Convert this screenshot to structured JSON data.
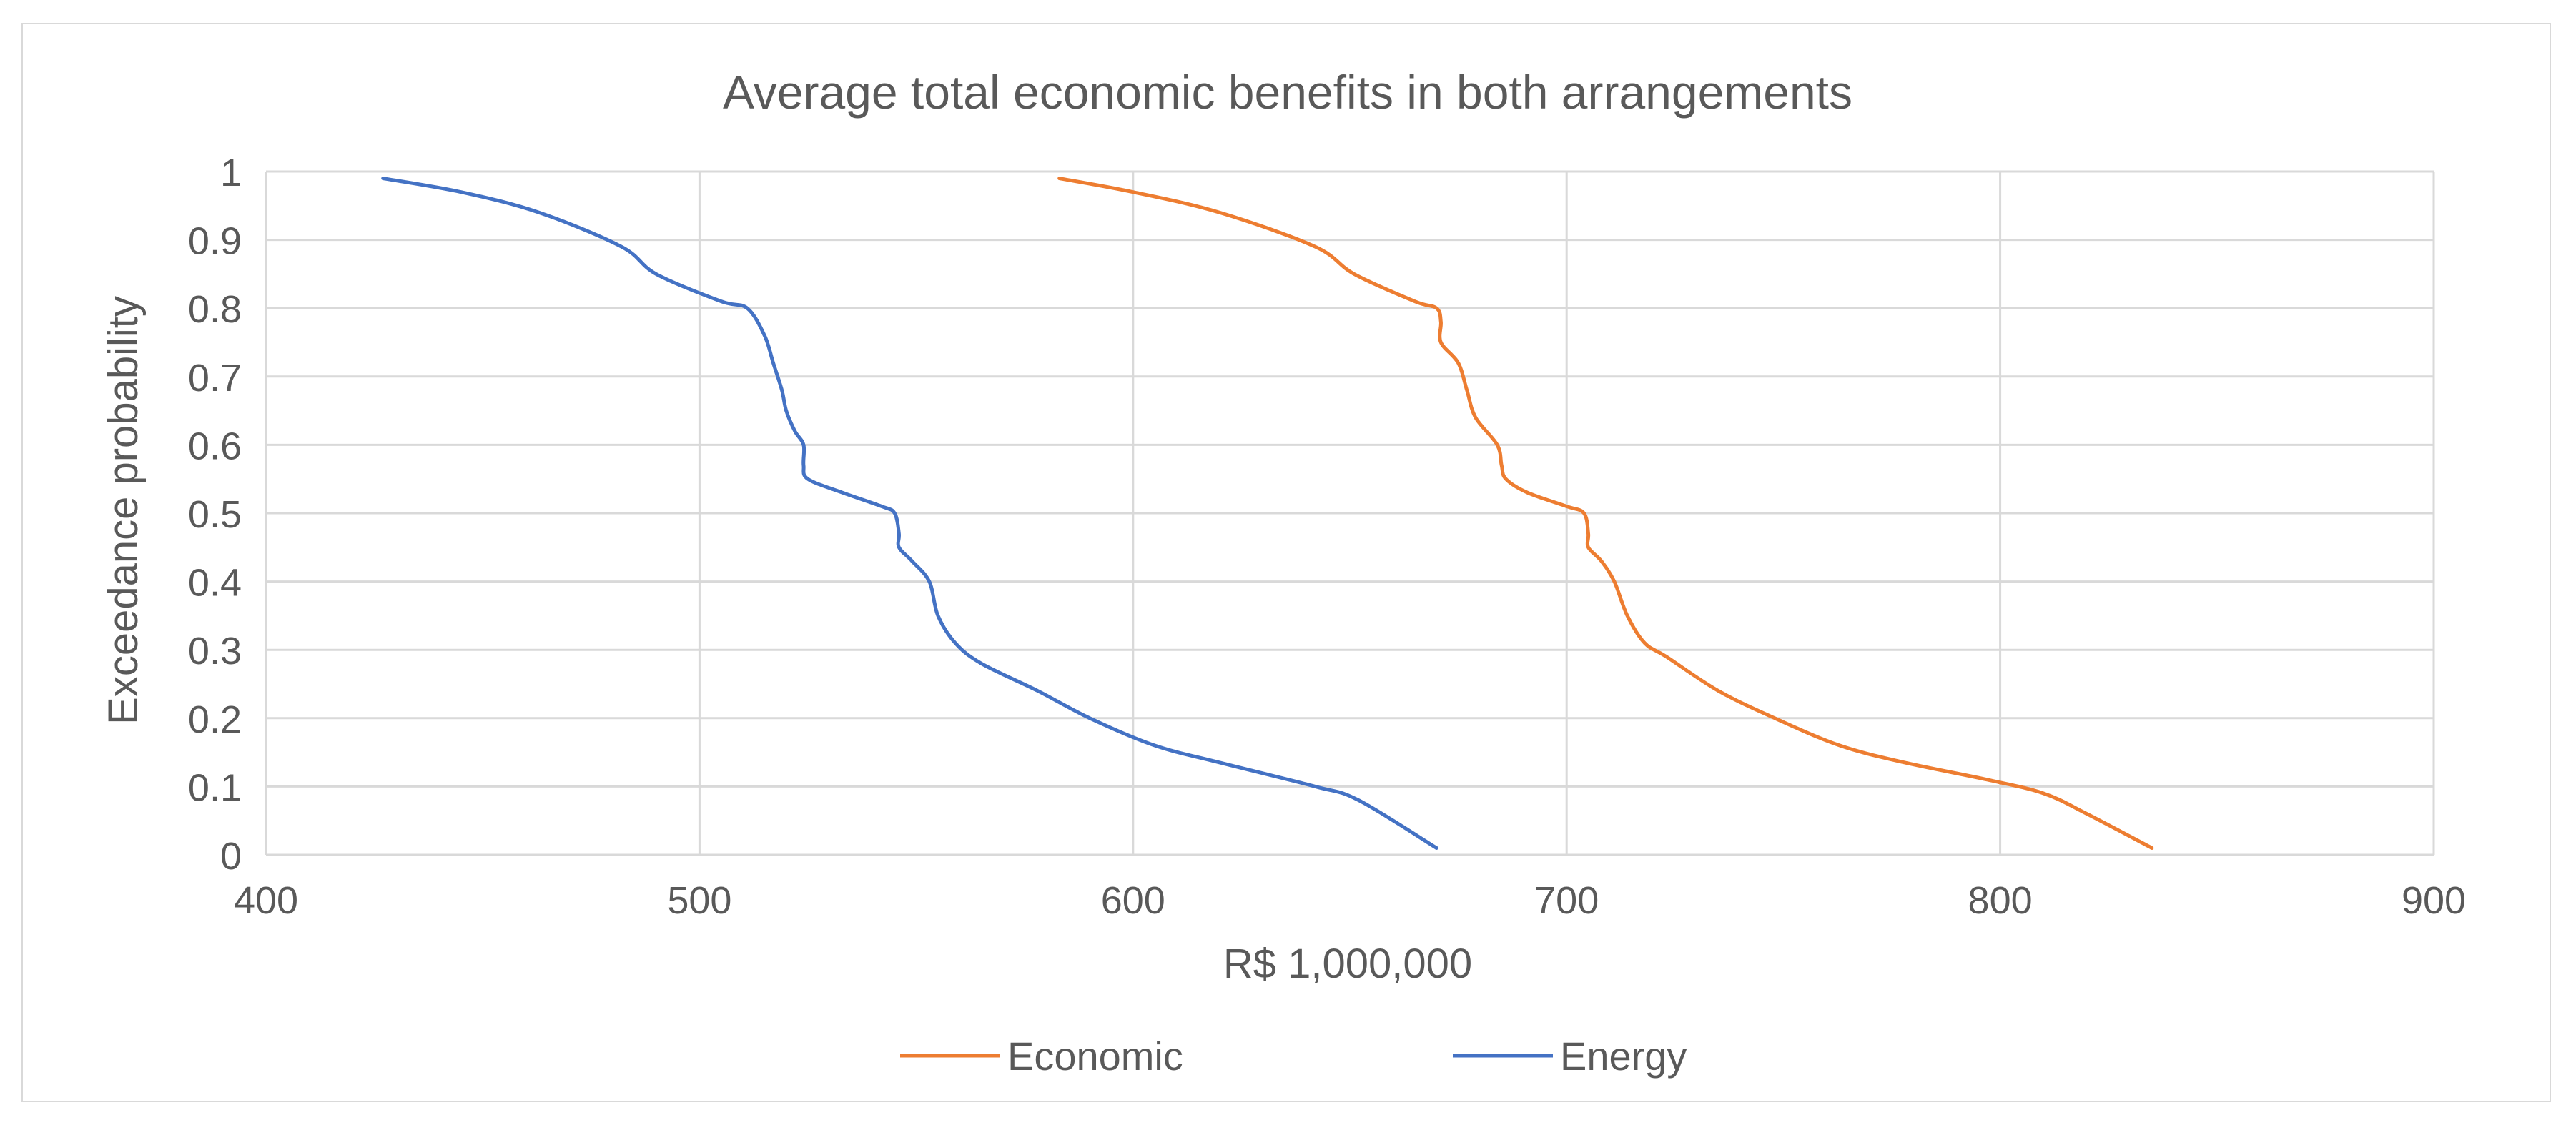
{
  "chart_data": {
    "type": "line",
    "title": "Average total economic benefits in both arrangements",
    "xlabel": "R$ 1,000,000",
    "ylabel": "Exceedance probability",
    "xlim": [
      400,
      900
    ],
    "ylim": [
      0,
      1
    ],
    "x_ticks": [
      "400",
      "500",
      "600",
      "700",
      "800",
      "900"
    ],
    "y_ticks": [
      "0",
      "0.1",
      "0.2",
      "0.3",
      "0.4",
      "0.5",
      "0.6",
      "0.7",
      "0.8",
      "0.9",
      "1"
    ],
    "x_tick_values": [
      400,
      500,
      600,
      700,
      800,
      900
    ],
    "y_tick_values": [
      0,
      0.1,
      0.2,
      0.3,
      0.4,
      0.5,
      0.6,
      0.7,
      0.8,
      0.9,
      1.0
    ],
    "grid": true,
    "legend_position": "bottom",
    "series": [
      {
        "name": "Economic",
        "color": "#ED7D31",
        "points": [
          [
            583,
            0.99
          ],
          [
            600,
            0.97
          ],
          [
            620,
            0.94
          ],
          [
            642,
            0.89
          ],
          [
            651,
            0.85
          ],
          [
            665,
            0.81
          ],
          [
            670,
            0.8
          ],
          [
            671,
            0.78
          ],
          [
            671,
            0.75
          ],
          [
            675,
            0.72
          ],
          [
            677,
            0.68
          ],
          [
            679,
            0.64
          ],
          [
            684,
            0.6
          ],
          [
            685,
            0.57
          ],
          [
            686,
            0.55
          ],
          [
            691,
            0.53
          ],
          [
            700,
            0.51
          ],
          [
            704,
            0.5
          ],
          [
            705,
            0.47
          ],
          [
            705,
            0.45
          ],
          [
            708,
            0.43
          ],
          [
            711,
            0.4
          ],
          [
            714,
            0.35
          ],
          [
            718,
            0.31
          ],
          [
            723,
            0.29
          ],
          [
            735,
            0.24
          ],
          [
            748,
            0.2
          ],
          [
            763,
            0.16
          ],
          [
            778,
            0.135
          ],
          [
            797,
            0.11
          ],
          [
            810,
            0.09
          ],
          [
            820,
            0.06
          ],
          [
            835,
            0.01
          ]
        ]
      },
      {
        "name": "Energy",
        "color": "#4472C4",
        "points": [
          [
            427,
            0.99
          ],
          [
            445,
            0.97
          ],
          [
            463,
            0.94
          ],
          [
            482,
            0.89
          ],
          [
            490,
            0.85
          ],
          [
            505,
            0.81
          ],
          [
            511,
            0.8
          ],
          [
            515,
            0.76
          ],
          [
            517,
            0.72
          ],
          [
            519,
            0.68
          ],
          [
            520,
            0.65
          ],
          [
            522,
            0.62
          ],
          [
            524,
            0.6
          ],
          [
            524,
            0.57
          ],
          [
            525,
            0.55
          ],
          [
            533,
            0.53
          ],
          [
            542,
            0.51
          ],
          [
            545,
            0.5
          ],
          [
            546,
            0.47
          ],
          [
            546,
            0.45
          ],
          [
            549,
            0.43
          ],
          [
            553,
            0.4
          ],
          [
            555,
            0.35
          ],
          [
            559,
            0.31
          ],
          [
            565,
            0.28
          ],
          [
            578,
            0.24
          ],
          [
            590,
            0.2
          ],
          [
            605,
            0.16
          ],
          [
            620,
            0.135
          ],
          [
            642,
            0.1
          ],
          [
            652,
            0.08
          ],
          [
            670,
            0.01
          ]
        ]
      }
    ]
  }
}
